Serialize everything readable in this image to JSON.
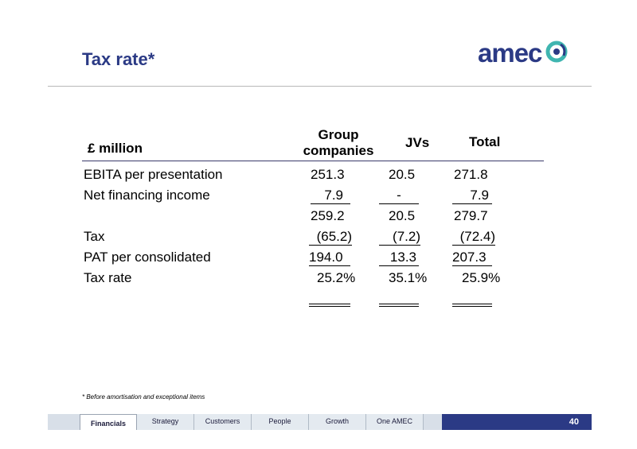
{
  "slide": {
    "title": "Tax rate*",
    "logo_text": "amec",
    "footnote": "* Before amortisation and exceptional items",
    "page_number": "40"
  },
  "table": {
    "unit_header": "£ million",
    "col_group_line1": "Group",
    "col_group_line2": "companies",
    "col_jvs": "JVs",
    "col_total": "Total",
    "rows": [
      {
        "label": "EBITA per presentation",
        "group": "251.3",
        "jvs": "20.5",
        "total": "271.8"
      },
      {
        "label": "Net financing income",
        "group": "7.9",
        "jvs": "-",
        "total": "7.9"
      },
      {
        "label": "",
        "group": "259.2",
        "jvs": "20.5",
        "total": "279.7"
      },
      {
        "label": "Tax",
        "group": "(65.2)",
        "jvs": "(7.2)",
        "total": "(72.4)"
      },
      {
        "label": "PAT per consolidated",
        "group": "194.0",
        "jvs": "13.3",
        "total": "207.3"
      },
      {
        "label": "Tax rate",
        "group": "25.2%",
        "jvs": "35.1%",
        "total": "25.9%"
      }
    ]
  },
  "nav": {
    "tabs": [
      "Financials",
      "Strategy",
      "Customers",
      "People",
      "Growth",
      "One AMEC"
    ]
  },
  "colors": {
    "brand_navy": "#2b3a85",
    "logo_teal": "#3fb5b0",
    "nav_bg": "#d8dfe8"
  }
}
